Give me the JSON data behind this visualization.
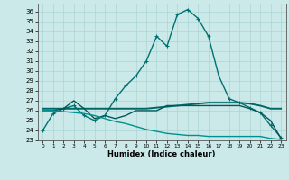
{
  "xlabel": "Humidex (Indice chaleur)",
  "xlim": [
    -0.5,
    23.5
  ],
  "ylim": [
    23,
    36.8
  ],
  "yticks": [
    23,
    24,
    25,
    26,
    27,
    28,
    29,
    30,
    31,
    32,
    33,
    34,
    35,
    36
  ],
  "xticks": [
    0,
    1,
    2,
    3,
    4,
    5,
    6,
    7,
    8,
    9,
    10,
    11,
    12,
    13,
    14,
    15,
    16,
    17,
    18,
    19,
    20,
    21,
    22,
    23
  ],
  "bg_color": "#cce9e9",
  "grid_color": "#aad4d4",
  "lines": [
    {
      "x": [
        0,
        1,
        2,
        3,
        4,
        5,
        6,
        7,
        8,
        9,
        10,
        11,
        12,
        13,
        14,
        15,
        16,
        17,
        18,
        19,
        20,
        21,
        22,
        23
      ],
      "y": [
        24.0,
        25.7,
        26.2,
        26.5,
        25.5,
        25.0,
        25.5,
        27.2,
        28.5,
        29.5,
        31.0,
        33.5,
        32.5,
        35.7,
        36.2,
        35.3,
        33.5,
        29.5,
        27.2,
        26.8,
        26.3,
        25.8,
        24.5,
        23.3
      ],
      "color": "#007070",
      "marker": "+",
      "lw": 1.0,
      "ms": 3.5
    },
    {
      "x": [
        0,
        1,
        2,
        3,
        4,
        5,
        6,
        7,
        8,
        9,
        10,
        11,
        12,
        13,
        14,
        15,
        16,
        17,
        18,
        19,
        20,
        21,
        22,
        23
      ],
      "y": [
        26.2,
        26.2,
        26.2,
        26.2,
        26.2,
        26.2,
        26.2,
        26.2,
        26.2,
        26.2,
        26.2,
        26.3,
        26.4,
        26.5,
        26.6,
        26.7,
        26.8,
        26.8,
        26.8,
        26.8,
        26.7,
        26.5,
        26.2,
        26.2
      ],
      "color": "#006666",
      "marker": null,
      "lw": 1.4,
      "ms": 0
    },
    {
      "x": [
        0,
        1,
        2,
        3,
        4,
        5,
        6,
        7,
        8,
        9,
        10,
        11,
        12,
        13,
        14,
        15,
        16,
        17,
        18,
        19,
        20,
        21,
        22,
        23
      ],
      "y": [
        26.0,
        26.0,
        26.2,
        27.0,
        26.2,
        25.2,
        25.5,
        25.2,
        25.5,
        26.0,
        26.0,
        26.0,
        26.5,
        26.5,
        26.5,
        26.5,
        26.5,
        26.5,
        26.5,
        26.5,
        26.2,
        25.8,
        25.0,
        23.2
      ],
      "color": "#005858",
      "marker": null,
      "lw": 1.0,
      "ms": 0
    },
    {
      "x": [
        0,
        1,
        2,
        3,
        4,
        5,
        6,
        7,
        8,
        9,
        10,
        11,
        12,
        13,
        14,
        15,
        16,
        17,
        18,
        19,
        20,
        21,
        22,
        23
      ],
      "y": [
        26.1,
        26.0,
        25.9,
        25.8,
        25.7,
        25.5,
        25.2,
        24.9,
        24.7,
        24.4,
        24.1,
        23.9,
        23.7,
        23.6,
        23.5,
        23.5,
        23.4,
        23.4,
        23.4,
        23.4,
        23.4,
        23.4,
        23.2,
        23.1
      ],
      "color": "#009090",
      "marker": null,
      "lw": 1.0,
      "ms": 0
    }
  ]
}
